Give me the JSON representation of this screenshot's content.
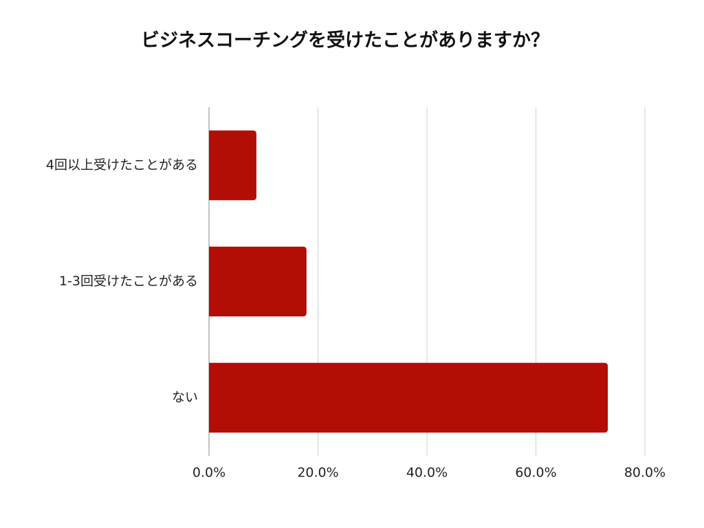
{
  "chart_data": {
    "type": "bar",
    "orientation": "horizontal",
    "title": "ビジネスコーチングを受けたことがありますか？",
    "categories": [
      "4回以上受けたことがある",
      "1-3回受けたことがある",
      "ない"
    ],
    "values": [
      8.7,
      17.9,
      73.2
    ],
    "color": "#b30e06",
    "xlim": [
      0,
      80
    ],
    "xticks": [
      {
        "value": 0,
        "label": "0.0%"
      },
      {
        "value": 20,
        "label": "20.0%"
      },
      {
        "value": 40,
        "label": "40.0%"
      },
      {
        "value": 60,
        "label": "60.0%"
      },
      {
        "value": 80,
        "label": "80.0%"
      }
    ],
    "grid": true
  }
}
